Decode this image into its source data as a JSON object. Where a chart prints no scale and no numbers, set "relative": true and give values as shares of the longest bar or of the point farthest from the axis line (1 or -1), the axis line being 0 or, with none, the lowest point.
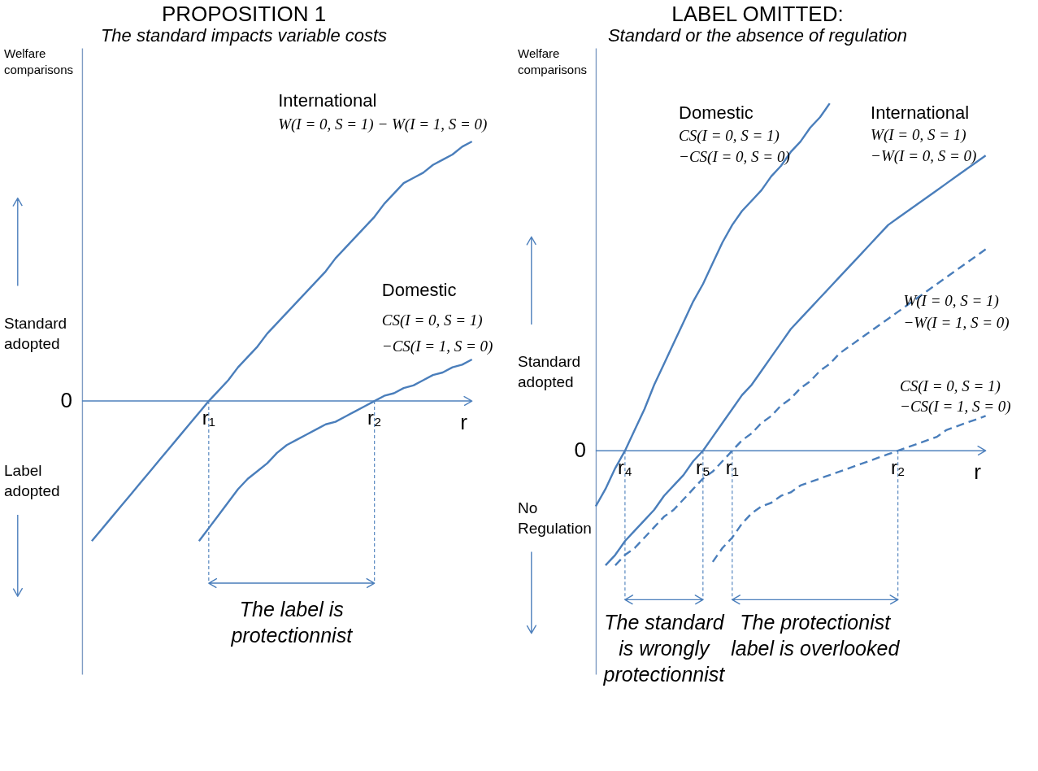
{
  "chart_data": [
    {
      "type": "line",
      "relative": true,
      "title": "PROPOSITION 1",
      "subtitle": "The standard impacts variable costs",
      "ylabel": "Welfare comparisons",
      "xlabel": "r",
      "categories": [
        null,
        null,
        null,
        null,
        null,
        null,
        null,
        null,
        null,
        null,
        null,
        null,
        null,
        "r₁",
        null,
        null,
        null,
        null,
        null,
        null,
        null,
        null,
        null,
        null,
        null,
        null,
        null,
        null,
        null,
        null,
        "r₂",
        null,
        null,
        null,
        null,
        null,
        null,
        null,
        null,
        null,
        null
      ],
      "series": [
        {
          "color": "#4a7ebb",
          "line_style": "solid",
          "values": [
            null,
            -0.54,
            -0.495,
            -0.45,
            -0.405,
            -0.36,
            -0.315,
            -0.27,
            -0.225,
            -0.18,
            -0.135,
            -0.09,
            -0.045,
            0,
            0.04,
            0.08,
            0.13,
            0.17,
            0.21,
            0.26,
            0.3,
            0.34,
            0.38,
            0.42,
            0.46,
            0.5,
            0.55,
            0.59,
            0.63,
            0.67,
            0.71,
            0.76,
            0.8,
            0.84,
            0.86,
            0.88,
            0.91,
            0.93,
            0.95,
            0.98,
            1.0
          ]
        },
        {
          "color": "#4a7ebb",
          "line_style": "solid",
          "values": [
            null,
            null,
            null,
            null,
            null,
            null,
            null,
            null,
            null,
            null,
            null,
            null,
            -0.54,
            -0.49,
            -0.44,
            -0.39,
            -0.34,
            -0.3,
            -0.27,
            -0.24,
            -0.2,
            -0.17,
            -0.15,
            -0.13,
            -0.11,
            -0.09,
            -0.08,
            -0.06,
            -0.04,
            -0.02,
            0,
            0.02,
            0.03,
            0.05,
            0.06,
            0.08,
            0.1,
            0.11,
            0.13,
            0.14,
            0.16
          ]
        }
      ],
      "ref_lines": [
        {
          "axis": "x",
          "value": "r₁",
          "color": "#4a7ebb",
          "line_style": "dotted"
        },
        {
          "axis": "x",
          "value": "r₂",
          "color": "#4a7ebb",
          "line_style": "dotted"
        }
      ],
      "annotations": [
        "Standard adopted",
        "Label adopted",
        "0",
        "International",
        "W(I = 0, S = 1) − W(I = 1, S = 0)",
        "Domestic",
        "CS(I = 0, S = 1)",
        "−CS(I = 1, S = 0)",
        "The label is\nprotectionnist"
      ]
    },
    {
      "type": "line",
      "relative": true,
      "title": "LABEL OMITTED:",
      "subtitle": "Standard or the absence of regulation",
      "ylabel": "Welfare comparisons",
      "xlabel": "r",
      "categories": [
        null,
        null,
        null,
        "r₄",
        null,
        null,
        null,
        null,
        null,
        null,
        null,
        "r₅",
        null,
        null,
        "r₁",
        null,
        null,
        null,
        null,
        null,
        null,
        null,
        null,
        null,
        null,
        null,
        null,
        null,
        null,
        null,
        null,
        "r₂",
        null,
        null,
        null,
        null,
        null,
        null,
        null,
        null,
        null
      ],
      "series": [
        {
          "color": "#4a7ebb",
          "line_style": "solid",
          "values": [
            -0.16,
            -0.11,
            -0.05,
            0,
            0.06,
            0.12,
            0.19,
            0.25,
            0.31,
            0.37,
            0.43,
            0.48,
            0.54,
            0.6,
            0.65,
            0.69,
            0.72,
            0.75,
            0.79,
            0.82,
            0.86,
            0.89,
            0.93,
            0.96,
            1.0,
            null,
            null,
            null,
            null,
            null,
            null,
            null,
            null,
            null,
            null,
            null,
            null,
            null,
            null,
            null,
            null
          ]
        },
        {
          "color": "#4a7ebb",
          "line_style": "solid",
          "values": [
            null,
            -0.33,
            -0.3,
            -0.26,
            -0.23,
            -0.2,
            -0.17,
            -0.13,
            -0.1,
            -0.07,
            -0.03,
            0,
            0.04,
            0.08,
            0.12,
            0.16,
            0.19,
            0.23,
            0.27,
            0.31,
            0.35,
            0.38,
            0.41,
            0.44,
            0.47,
            0.5,
            0.53,
            0.56,
            0.59,
            0.62,
            0.65,
            0.67,
            0.69,
            0.71,
            0.73,
            0.75,
            0.77,
            0.79,
            0.81,
            0.83,
            0.85
          ]
        },
        {
          "color": "#4a7ebb",
          "line_style": "dashed",
          "values": [
            null,
            null,
            -0.33,
            -0.3,
            -0.28,
            -0.25,
            -0.22,
            -0.19,
            -0.17,
            -0.14,
            -0.11,
            -0.08,
            -0.06,
            -0.03,
            0,
            0.03,
            0.05,
            0.08,
            0.1,
            0.13,
            0.15,
            0.18,
            0.2,
            0.23,
            0.25,
            0.28,
            0.3,
            0.32,
            0.34,
            0.36,
            0.38,
            0.4,
            0.42,
            0.44,
            0.46,
            0.48,
            0.5,
            0.52,
            0.54,
            0.56,
            0.58
          ]
        },
        {
          "color": "#4a7ebb",
          "line_style": "dashed",
          "values": [
            null,
            null,
            null,
            null,
            null,
            null,
            null,
            null,
            null,
            null,
            null,
            null,
            -0.32,
            -0.28,
            -0.25,
            -0.21,
            -0.18,
            -0.16,
            -0.15,
            -0.13,
            -0.12,
            -0.1,
            -0.09,
            -0.08,
            -0.07,
            -0.06,
            -0.05,
            -0.04,
            -0.03,
            -0.02,
            -0.01,
            0,
            0.01,
            0.02,
            0.03,
            0.04,
            0.06,
            0.07,
            0.08,
            0.09,
            0.1
          ]
        }
      ],
      "ref_lines": [
        {
          "axis": "x",
          "value": "r₄",
          "color": "#4a7ebb",
          "line_style": "dotted"
        },
        {
          "axis": "x",
          "value": "r₅",
          "color": "#4a7ebb",
          "line_style": "dotted"
        },
        {
          "axis": "x",
          "value": "r₁",
          "color": "#4a7ebb",
          "line_style": "dotted"
        },
        {
          "axis": "x",
          "value": "r₂",
          "color": "#4a7ebb",
          "line_style": "dotted"
        }
      ],
      "annotations": [
        "Standard adopted",
        "No Regulation",
        "0",
        "Domestic",
        "CS(I = 0, S = 1)",
        "−CS(I = 0, S = 0)",
        "International",
        "W(I = 0, S = 1)",
        "−W(I = 0, S = 0)",
        "W(I = 0, S = 1)",
        "−W(I = 1, S = 0)",
        "CS(I = 0, S = 1)",
        "−CS(I = 1, S = 0)",
        "The standard\nis wrongly\nprotectionnist",
        "The protectionist\nlabel is overlooked"
      ]
    }
  ]
}
